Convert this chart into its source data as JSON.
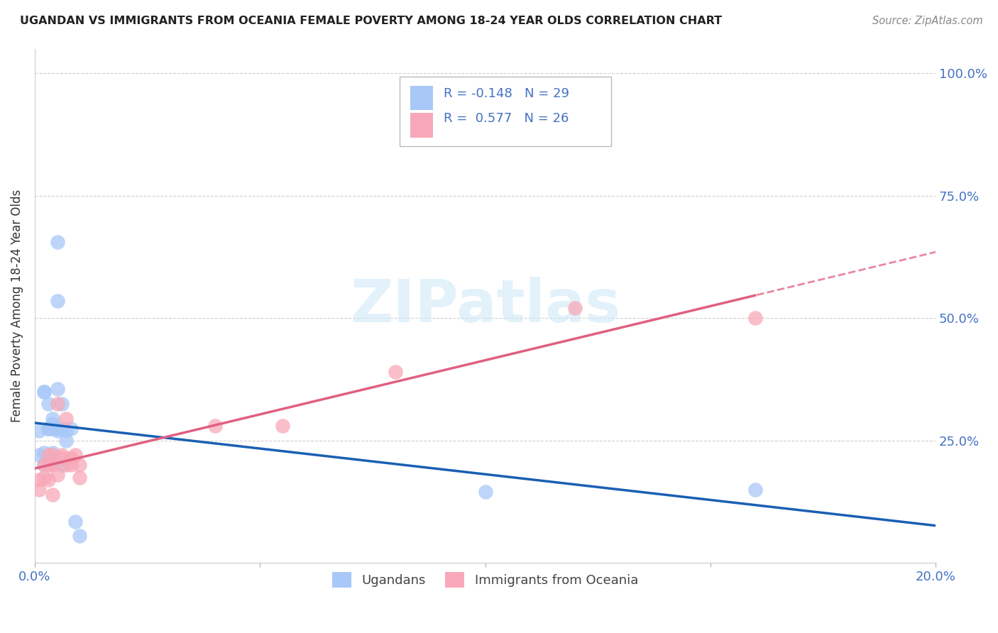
{
  "title": "UGANDAN VS IMMIGRANTS FROM OCEANIA FEMALE POVERTY AMONG 18-24 YEAR OLDS CORRELATION CHART",
  "source": "Source: ZipAtlas.com",
  "ylabel": "Female Poverty Among 18-24 Year Olds",
  "xlim": [
    0.0,
    0.2
  ],
  "ylim": [
    0.0,
    1.05
  ],
  "yticks": [
    0.0,
    0.25,
    0.5,
    0.75,
    1.0
  ],
  "xticks": [
    0.0,
    0.05,
    0.1,
    0.15,
    0.2
  ],
  "xtick_labels": [
    "0.0%",
    "",
    "",
    "",
    "20.0%"
  ],
  "ytick_right_labels": [
    "",
    "25.0%",
    "50.0%",
    "75.0%",
    "100.0%"
  ],
  "ugandan_color": "#a8c8f8",
  "oceania_color": "#f8a8b8",
  "ugandan_line_color": "#1a5fb4",
  "oceania_line_color": "#e06080",
  "watermark_color": "#d0e8f8",
  "ugandan_x": [
    0.001,
    0.001,
    0.002,
    0.002,
    0.002,
    0.002,
    0.003,
    0.003,
    0.003,
    0.003,
    0.004,
    0.004,
    0.004,
    0.004,
    0.005,
    0.005,
    0.005,
    0.005,
    0.005,
    0.006,
    0.006,
    0.006,
    0.007,
    0.007,
    0.008,
    0.009,
    0.01,
    0.1,
    0.16
  ],
  "ugandan_y": [
    0.27,
    0.22,
    0.35,
    0.35,
    0.225,
    0.2,
    0.275,
    0.275,
    0.325,
    0.205,
    0.285,
    0.295,
    0.225,
    0.275,
    0.27,
    0.535,
    0.655,
    0.275,
    0.355,
    0.275,
    0.325,
    0.2,
    0.27,
    0.25,
    0.275,
    0.085,
    0.055,
    0.145,
    0.15
  ],
  "oceania_x": [
    0.001,
    0.001,
    0.002,
    0.002,
    0.003,
    0.003,
    0.003,
    0.004,
    0.004,
    0.004,
    0.005,
    0.005,
    0.006,
    0.006,
    0.007,
    0.007,
    0.008,
    0.008,
    0.009,
    0.01,
    0.01,
    0.04,
    0.055,
    0.08,
    0.12,
    0.16
  ],
  "oceania_y": [
    0.15,
    0.17,
    0.2,
    0.175,
    0.17,
    0.2,
    0.22,
    0.22,
    0.14,
    0.2,
    0.18,
    0.325,
    0.215,
    0.22,
    0.295,
    0.2,
    0.215,
    0.2,
    0.22,
    0.2,
    0.175,
    0.28,
    0.28,
    0.39,
    0.52,
    0.5
  ]
}
